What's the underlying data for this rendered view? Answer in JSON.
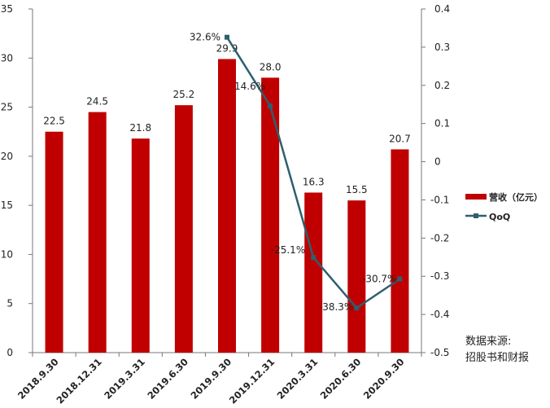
{
  "chart_data": {
    "type": "bar",
    "categories": [
      "2018.9.30",
      "2018.12.31",
      "2019.3.31",
      "2019.6.30",
      "2019.9.30",
      "2019.12.31",
      "2020.3.31",
      "2020.6.30",
      "2020.9.30"
    ],
    "series": [
      {
        "name": "营收（亿元）",
        "type": "bar",
        "axis": "left",
        "color": "#c00000",
        "values": [
          22.5,
          24.5,
          21.8,
          25.2,
          29.9,
          28.0,
          16.3,
          15.5,
          20.7
        ],
        "labels": [
          "22.5",
          "24.5",
          "21.8",
          "25.2",
          "29.9",
          "28.0",
          "16.3",
          "15.5",
          "20.7"
        ]
      },
      {
        "name": "QoQ",
        "type": "line",
        "axis": "right",
        "color": "#2e5f6e",
        "values": [
          null,
          null,
          null,
          null,
          0.326,
          0.146,
          -0.251,
          -0.383,
          -0.307
        ],
        "labels": [
          "",
          "",
          "",
          "",
          "32.6%",
          "14.6%",
          "-25.1%",
          "-38.3%",
          "-30.7%"
        ]
      }
    ],
    "y_left": {
      "lim": [
        0,
        35
      ],
      "ticks": [
        "0",
        "5",
        "10",
        "15",
        "20",
        "25",
        "30",
        "35"
      ]
    },
    "y_right": {
      "lim": [
        -0.5,
        0.4
      ],
      "ticks": [
        "-0.5",
        "-0.4",
        "-0.3",
        "-0.2",
        "-0.1",
        "0",
        "0.1",
        "0.2",
        "0.3",
        "0.4"
      ]
    },
    "grid": false,
    "legend_position": "right"
  },
  "source_note": [
    "数据来源:",
    "招股书和财报"
  ]
}
